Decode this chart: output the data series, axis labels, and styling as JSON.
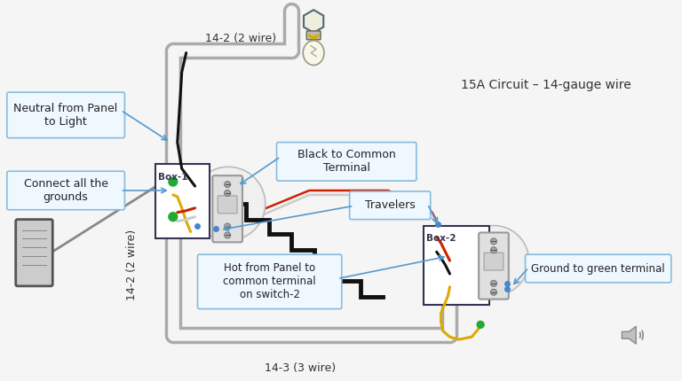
{
  "background_color": "#f5f5f5",
  "circuit_label": "15A Circuit – 14-gauge wire",
  "wire_14_2_top_label": "14-2 (2 wire)",
  "wire_14_3_bottom_label": "14-3 (3 wire)",
  "wire_14_2_side_label": "14-2 (2 wire)",
  "box1_label": "Box-1",
  "box2_label": "Box-2",
  "ann_neutral": "Neutral from Panel\nto Light",
  "ann_grounds": "Connect all the\ngrounds",
  "ann_black_common": "Black to Common\nTerminal",
  "ann_travelers": "Travelers",
  "ann_hot": "Hot from Panel to\ncommon terminal\non switch-2",
  "ann_ground_green": "Ground to green terminal",
  "conduit_color": "#aaaaaa",
  "conduit_inner": "#f5f5f5",
  "box_edge": "#333355",
  "ann_edge": "#88bbdd",
  "ann_face": "#f0f8ff",
  "arrow_color": "#5599cc",
  "stair_color": "#111111",
  "gray_wire": "#888888",
  "black_wire": "#111111",
  "red_wire": "#cc2200",
  "white_wire": "#cccccc",
  "yellow_wire": "#ddaa00",
  "green_dot": "#22aa33"
}
